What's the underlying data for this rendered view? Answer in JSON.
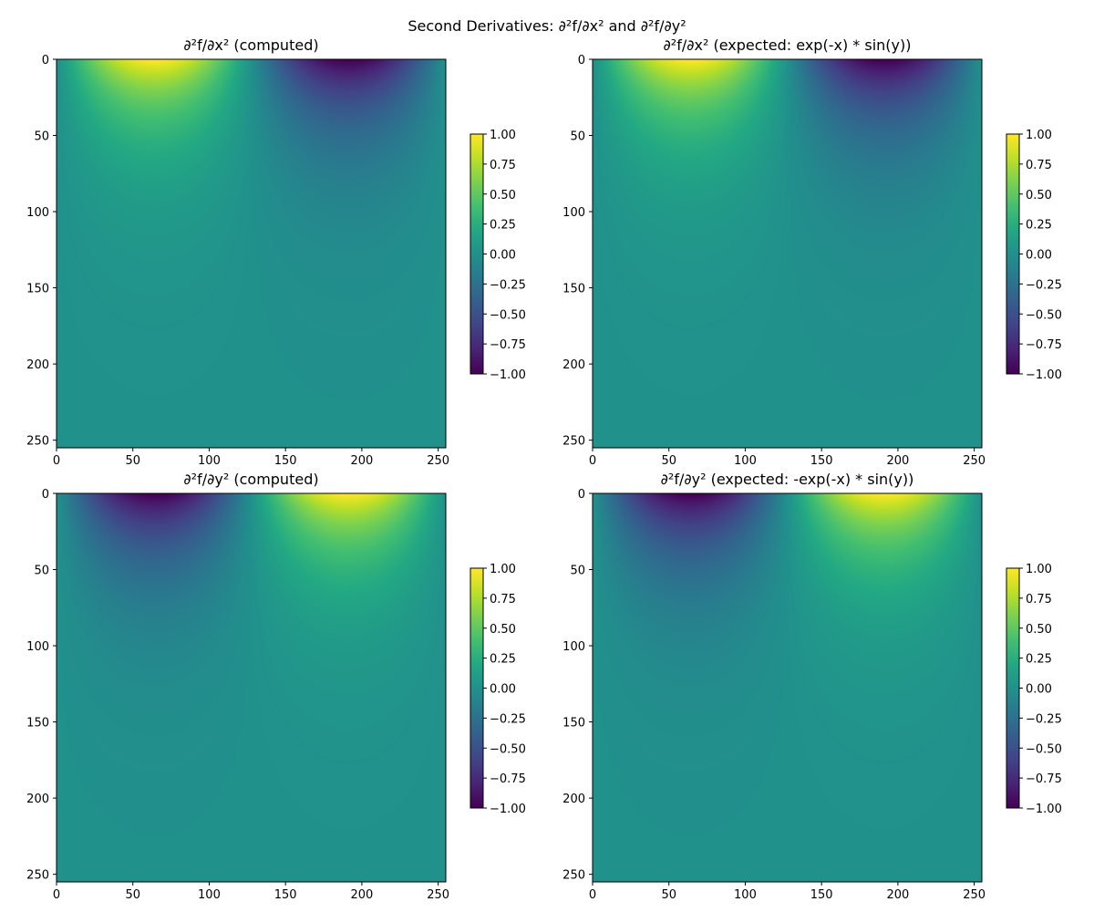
{
  "figure": {
    "suptitle": "Second Derivatives: ∂²f/∂x² and ∂²f/∂y²"
  },
  "chart_data": [
    {
      "type": "heatmap",
      "title": "∂²f/∂x² (computed)",
      "colormap": "viridis",
      "origin": "upper",
      "x_ticks": [
        0,
        50,
        100,
        150,
        200,
        250
      ],
      "y_ticks": [
        0,
        50,
        100,
        150,
        200,
        250
      ],
      "xlim": [
        0,
        255
      ],
      "ylim": [
        255,
        0
      ],
      "grid_size": 256,
      "field": "exp(-x) * sin(y)",
      "colorbar": {
        "min": -1.0,
        "max": 1.0,
        "ticks": [
          1.0,
          0.75,
          0.5,
          0.25,
          0.0,
          -0.25,
          -0.5,
          -0.75,
          -1.0
        ],
        "tick_labels": [
          "1.00",
          "0.75",
          "0.50",
          "0.25",
          "0.00",
          "−0.25",
          "−0.50",
          "−0.75",
          "−1.00"
        ]
      }
    },
    {
      "type": "heatmap",
      "title": "∂²f/∂x² (expected: exp(-x) * sin(y))",
      "colormap": "viridis",
      "origin": "upper",
      "x_ticks": [
        0,
        50,
        100,
        150,
        200,
        250
      ],
      "y_ticks": [
        0,
        50,
        100,
        150,
        200,
        250
      ],
      "xlim": [
        0,
        255
      ],
      "ylim": [
        255,
        0
      ],
      "grid_size": 256,
      "field": "exp(-x) * sin(y)",
      "colorbar": {
        "min": -1.0,
        "max": 1.0,
        "ticks": [
          1.0,
          0.75,
          0.5,
          0.25,
          0.0,
          -0.25,
          -0.5,
          -0.75,
          -1.0
        ],
        "tick_labels": [
          "1.00",
          "0.75",
          "0.50",
          "0.25",
          "0.00",
          "−0.25",
          "−0.50",
          "−0.75",
          "−1.00"
        ]
      }
    },
    {
      "type": "heatmap",
      "title": "∂²f/∂y² (computed)",
      "colormap": "viridis",
      "origin": "upper",
      "x_ticks": [
        0,
        50,
        100,
        150,
        200,
        250
      ],
      "y_ticks": [
        0,
        50,
        100,
        150,
        200,
        250
      ],
      "xlim": [
        0,
        255
      ],
      "ylim": [
        255,
        0
      ],
      "grid_size": 256,
      "field": "-exp(-x) * sin(y)",
      "colorbar": {
        "min": -1.0,
        "max": 1.0,
        "ticks": [
          1.0,
          0.75,
          0.5,
          0.25,
          0.0,
          -0.25,
          -0.5,
          -0.75,
          -1.0
        ],
        "tick_labels": [
          "1.00",
          "0.75",
          "0.50",
          "0.25",
          "0.00",
          "−0.25",
          "−0.50",
          "−0.75",
          "−1.00"
        ]
      }
    },
    {
      "type": "heatmap",
      "title": "∂²f/∂y² (expected: -exp(-x) * sin(y))",
      "colormap": "viridis",
      "origin": "upper",
      "x_ticks": [
        0,
        50,
        100,
        150,
        200,
        250
      ],
      "y_ticks": [
        0,
        50,
        100,
        150,
        200,
        250
      ],
      "xlim": [
        0,
        255
      ],
      "ylim": [
        255,
        0
      ],
      "grid_size": 256,
      "field": "-exp(-x) * sin(y)",
      "colorbar": {
        "min": -1.0,
        "max": 1.0,
        "ticks": [
          1.0,
          0.75,
          0.5,
          0.25,
          0.0,
          -0.25,
          -0.5,
          -0.75,
          -1.0
        ],
        "tick_labels": [
          "1.00",
          "0.75",
          "0.50",
          "0.25",
          "0.00",
          "−0.25",
          "−0.50",
          "−0.75",
          "−1.00"
        ]
      }
    }
  ]
}
